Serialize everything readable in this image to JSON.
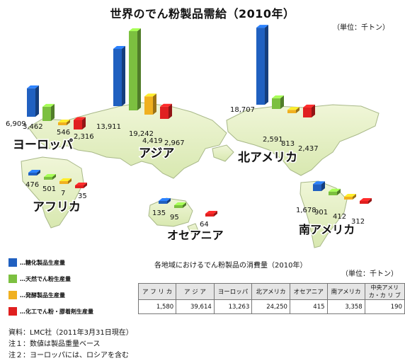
{
  "title": "世界のでん粉製品需給（2010年）",
  "unit_top": "（単位：千トン）",
  "chart_data": {
    "type": "bar",
    "categories": [
      "ヨーロッパ",
      "アジア",
      "北アメリカ",
      "アフリカ",
      "オセアニア",
      "南アメリカ"
    ],
    "series": [
      {
        "name": "糖化製品生産量",
        "color": "#2060c0",
        "values": [
          6909,
          13911,
          18707,
          476,
          135,
          1678
        ]
      },
      {
        "name": "天然でん粉生産量",
        "color": "#7cc040",
        "values": [
          3462,
          19242,
          2591,
          501,
          95,
          901
        ]
      },
      {
        "name": "発酵製品生産量",
        "color": "#f0b020",
        "values": [
          546,
          4419,
          813,
          7,
          0,
          412
        ]
      },
      {
        "name": "化工でん粉・膠着剤生産量",
        "color": "#e02020",
        "values": [
          2316,
          2967,
          2437,
          35,
          64,
          312
        ]
      }
    ],
    "data_labels": [
      [
        "6,909",
        "3,462",
        "546",
        "2,316"
      ],
      [
        "13,911",
        "19,242",
        "4,419",
        "2,967"
      ],
      [
        "18,707",
        "2,591",
        "813",
        "2,437"
      ],
      [
        "476",
        "501",
        "7",
        "35"
      ],
      [
        "135",
        "95",
        "",
        "64"
      ],
      [
        "1,678",
        "901",
        "412",
        "312"
      ]
    ]
  },
  "legend": [
    {
      "label": "…糖化製品生産量",
      "color": "#2060c0"
    },
    {
      "label": "…天然でん粉生産量",
      "color": "#7cc040"
    },
    {
      "label": "…発酵製品生産量",
      "color": "#f0b020"
    },
    {
      "label": "…化工でん粉・膠着剤生産量",
      "color": "#e02020"
    }
  ],
  "table_caption": "各地域におけるでん粉製品の消費量（2010年）",
  "unit_table": "（単位：千トン）",
  "table": {
    "headers": [
      "ア フ リ カ",
      "ア ジ ア",
      "ヨーロッパ",
      "北アメリカ",
      "オセアニア",
      "南アメリカ",
      "中央アメリカ・カ リ ブ"
    ],
    "values": [
      "1,580",
      "39,614",
      "13,263",
      "24,250",
      "415",
      "3,358",
      "190"
    ]
  },
  "notes": [
    "資料：LMC社（2011年3月31日現在）",
    "注１：数値は製品重量ベース",
    "注２：ヨーロッパには、ロシアを含む"
  ]
}
